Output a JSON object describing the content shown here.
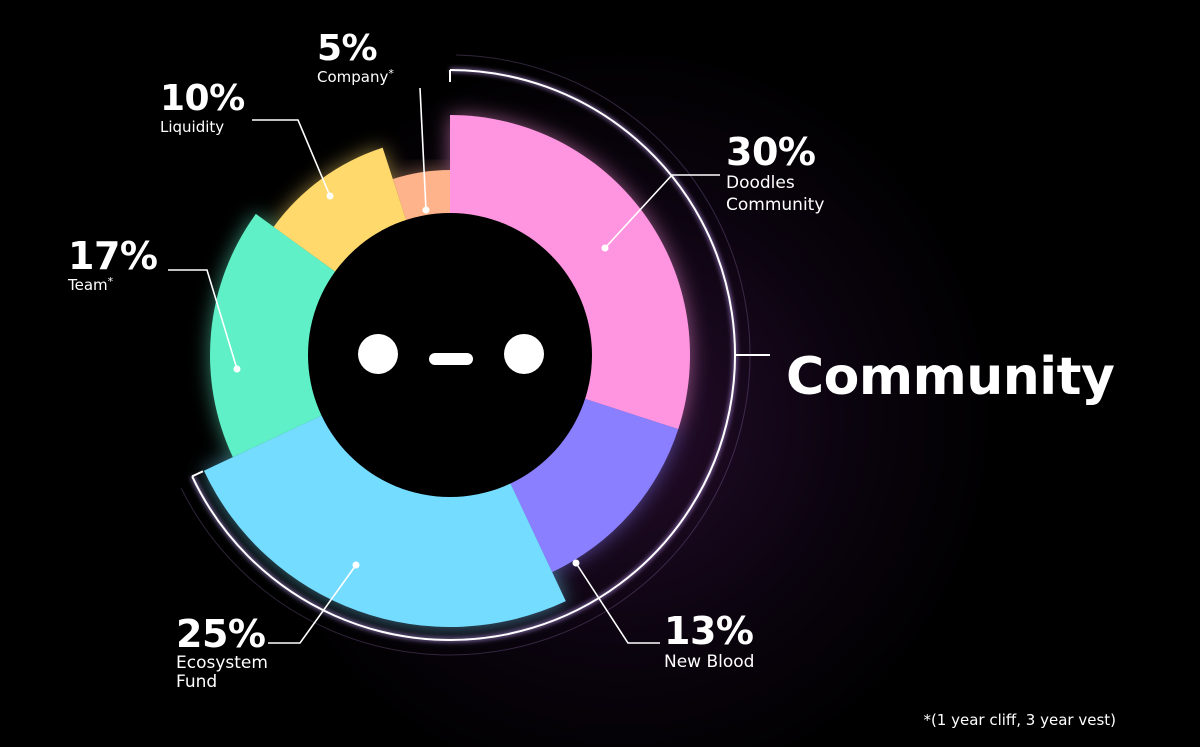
{
  "chart_data": {
    "type": "pie",
    "style": "variable-radius donut (rose)",
    "slices": [
      {
        "value": 30,
        "pct_label": "30%",
        "name": "Doodles\nCommunity",
        "asterisk": "",
        "color": "#FF95E0"
      },
      {
        "value": 13,
        "pct_label": "13%",
        "name": "New Blood",
        "asterisk": "",
        "color": "#8A7FFF"
      },
      {
        "value": 25,
        "pct_label": "25%",
        "name": "Ecosystem\nFund",
        "asterisk": "",
        "color": "#74DCFF"
      },
      {
        "value": 17,
        "pct_label": "17%",
        "name": "Team",
        "asterisk": "*",
        "color": "#5FF0C7"
      },
      {
        "value": 10,
        "pct_label": "10%",
        "name": "Liquidity",
        "asterisk": "",
        "color": "#FFD96B"
      },
      {
        "value": 5,
        "pct_label": "5%",
        "name": "Company",
        "asterisk": "*",
        "color": "#FFB38A"
      }
    ],
    "group_bracket": {
      "label": "Community",
      "covers": [
        "Doodles\nCommunity",
        "New Blood",
        "Ecosystem\nFund"
      ]
    },
    "center_face": {
      "color": "#000000",
      "features_color": "#FFFFFF"
    },
    "footnote": "*(1 year cliff, 3 year vest)",
    "background": "#000000"
  }
}
